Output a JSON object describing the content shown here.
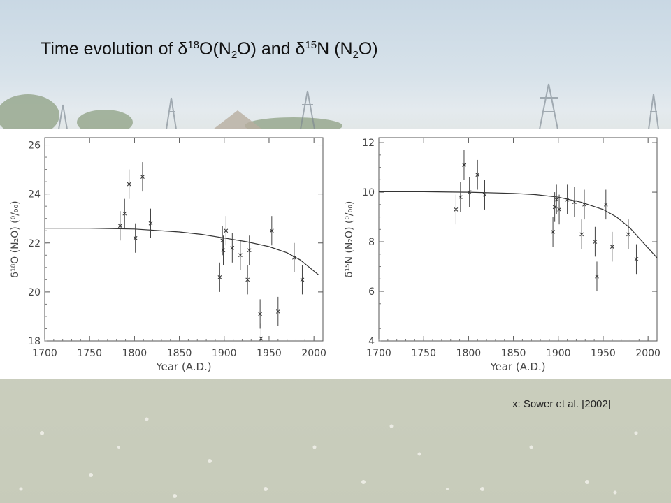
{
  "slide": {
    "title": {
      "prefix": "Time evolution of δ",
      "sup1": "18",
      "part2": "O(N",
      "sub1": "2",
      "part3": "O) and δ",
      "sup2": "15",
      "part4": "N (N",
      "sub2": "2",
      "part5": "O)"
    },
    "citation": "x: Sower et al. [2002]"
  },
  "chart_data": [
    {
      "type": "scatter",
      "title": "",
      "xlabel": "Year (A.D.)",
      "ylabel": "δ¹⁸O (N₂O) (⁰/₀₀)",
      "xlim": [
        1700,
        2010
      ],
      "ylim": [
        18,
        26.3
      ],
      "xticks": [
        1700,
        1750,
        1800,
        1850,
        1900,
        1950,
        2000
      ],
      "yticks": [
        18,
        20,
        22,
        24,
        26
      ],
      "marker": "x",
      "points": [
        {
          "x": 1784,
          "y": 22.7,
          "err": 0.6
        },
        {
          "x": 1789,
          "y": 23.2,
          "err": 0.6
        },
        {
          "x": 1794,
          "y": 24.4,
          "err": 0.6
        },
        {
          "x": 1801,
          "y": 22.2,
          "err": 0.6
        },
        {
          "x": 1809,
          "y": 24.7,
          "err": 0.6
        },
        {
          "x": 1818,
          "y": 22.8,
          "err": 0.6
        },
        {
          "x": 1895,
          "y": 20.6,
          "err": 0.6
        },
        {
          "x": 1898,
          "y": 22.1,
          "err": 0.6
        },
        {
          "x": 1899,
          "y": 21.7,
          "err": 0.6
        },
        {
          "x": 1902,
          "y": 22.5,
          "err": 0.6
        },
        {
          "x": 1909,
          "y": 21.8,
          "err": 0.6
        },
        {
          "x": 1918,
          "y": 21.5,
          "err": 0.6
        },
        {
          "x": 1926,
          "y": 20.5,
          "err": 0.6
        },
        {
          "x": 1928,
          "y": 21.7,
          "err": 0.6
        },
        {
          "x": 1940,
          "y": 19.1,
          "err": 0.6
        },
        {
          "x": 1941,
          "y": 18.1,
          "err": 0.6
        },
        {
          "x": 1953,
          "y": 22.5,
          "err": 0.6
        },
        {
          "x": 1960,
          "y": 19.2,
          "err": 0.6
        },
        {
          "x": 1978,
          "y": 21.4,
          "err": 0.6
        },
        {
          "x": 1987,
          "y": 20.5,
          "err": 0.6
        }
      ],
      "curve": [
        {
          "x": 1700,
          "y": 22.6
        },
        {
          "x": 1750,
          "y": 22.6
        },
        {
          "x": 1800,
          "y": 22.57
        },
        {
          "x": 1850,
          "y": 22.45
        },
        {
          "x": 1875,
          "y": 22.35
        },
        {
          "x": 1900,
          "y": 22.2
        },
        {
          "x": 1925,
          "y": 22.05
        },
        {
          "x": 1950,
          "y": 21.85
        },
        {
          "x": 1970,
          "y": 21.6
        },
        {
          "x": 1985,
          "y": 21.3
        },
        {
          "x": 1995,
          "y": 21.0
        },
        {
          "x": 2005,
          "y": 20.7
        }
      ]
    },
    {
      "type": "scatter",
      "title": "",
      "xlabel": "Year (A.D.)",
      "ylabel": "δ¹⁵N (N₂O) (⁰/₀₀)",
      "xlim": [
        1700,
        2010
      ],
      "ylim": [
        4,
        12.2
      ],
      "xticks": [
        1700,
        1750,
        1800,
        1850,
        1900,
        1950,
        2000
      ],
      "yticks": [
        4,
        6,
        8,
        10,
        12
      ],
      "marker": "x",
      "points": [
        {
          "x": 1786,
          "y": 9.3,
          "err": 0.6
        },
        {
          "x": 1791,
          "y": 9.8,
          "err": 0.6
        },
        {
          "x": 1795,
          "y": 11.1,
          "err": 0.6
        },
        {
          "x": 1801,
          "y": 10.0,
          "err": 0.6
        },
        {
          "x": 1810,
          "y": 10.7,
          "err": 0.6
        },
        {
          "x": 1818,
          "y": 9.9,
          "err": 0.6
        },
        {
          "x": 1894,
          "y": 8.4,
          "err": 0.6
        },
        {
          "x": 1896,
          "y": 9.4,
          "err": 0.6
        },
        {
          "x": 1898,
          "y": 9.7,
          "err": 0.6
        },
        {
          "x": 1901,
          "y": 9.3,
          "err": 0.6
        },
        {
          "x": 1910,
          "y": 9.7,
          "err": 0.6
        },
        {
          "x": 1918,
          "y": 9.6,
          "err": 0.6
        },
        {
          "x": 1926,
          "y": 8.3,
          "err": 0.6
        },
        {
          "x": 1929,
          "y": 9.5,
          "err": 0.6
        },
        {
          "x": 1941,
          "y": 8.0,
          "err": 0.6
        },
        {
          "x": 1943,
          "y": 6.6,
          "err": 0.6
        },
        {
          "x": 1953,
          "y": 9.5,
          "err": 0.6
        },
        {
          "x": 1960,
          "y": 7.8,
          "err": 0.6
        },
        {
          "x": 1978,
          "y": 8.3,
          "err": 0.6
        },
        {
          "x": 1987,
          "y": 7.3,
          "err": 0.6
        }
      ],
      "curve": [
        {
          "x": 1700,
          "y": 10.02
        },
        {
          "x": 1750,
          "y": 10.02
        },
        {
          "x": 1800,
          "y": 10.0
        },
        {
          "x": 1850,
          "y": 9.95
        },
        {
          "x": 1875,
          "y": 9.9
        },
        {
          "x": 1900,
          "y": 9.8
        },
        {
          "x": 1925,
          "y": 9.6
        },
        {
          "x": 1950,
          "y": 9.3
        },
        {
          "x": 1965,
          "y": 9.0
        },
        {
          "x": 1980,
          "y": 8.55
        },
        {
          "x": 1995,
          "y": 7.95
        },
        {
          "x": 2010,
          "y": 7.35
        }
      ]
    }
  ]
}
